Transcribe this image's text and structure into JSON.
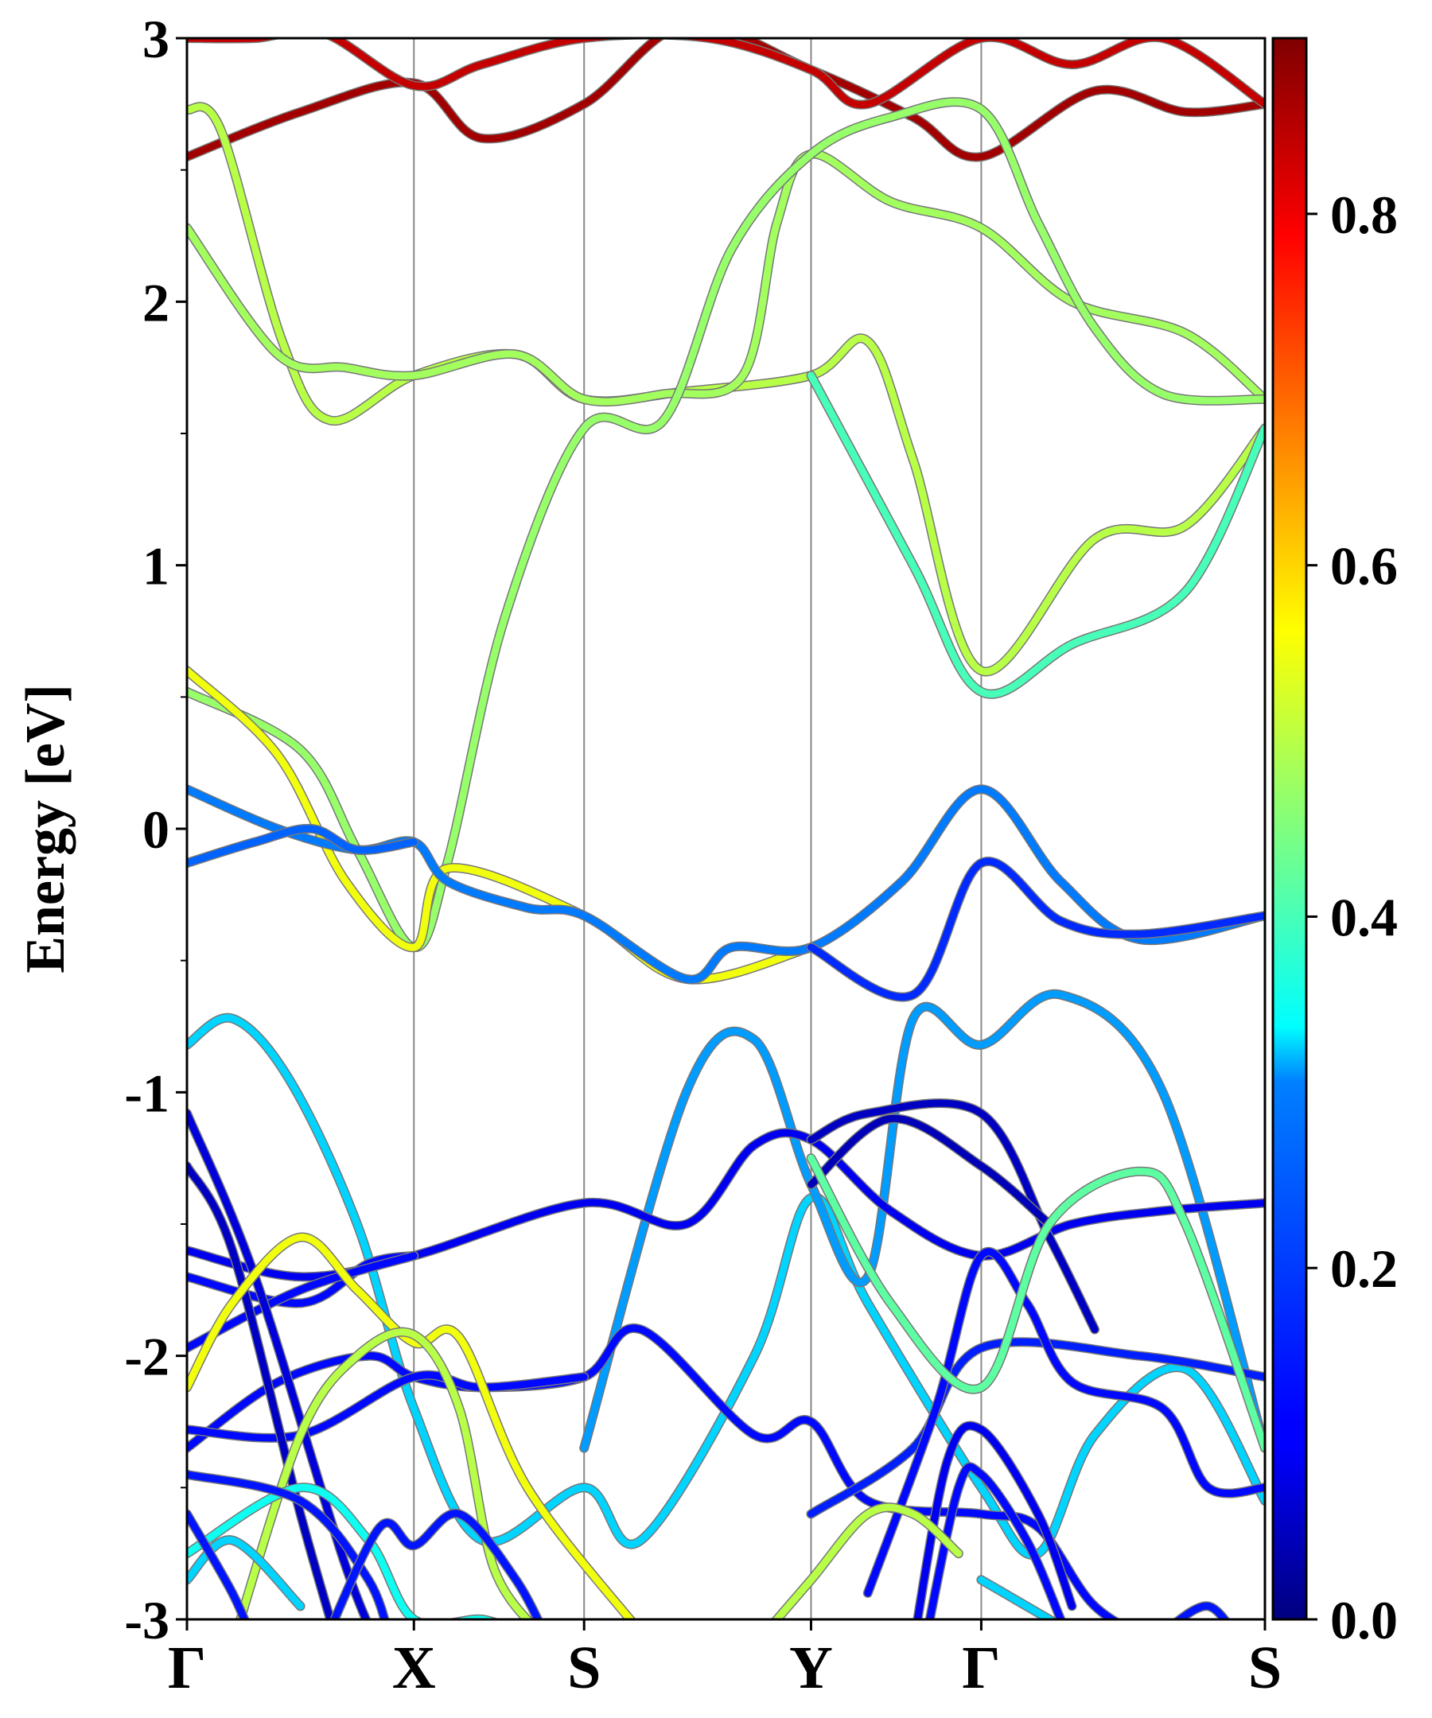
{
  "chart_data": {
    "type": "line",
    "title": "",
    "xlabel": "",
    "ylabel": "Energy [eV]",
    "ylim": [
      -3,
      3
    ],
    "y_ticks": [
      "-3",
      "-2",
      "-1",
      "0",
      "1",
      "2",
      "3"
    ],
    "grid": false,
    "legend": "none",
    "k_path": {
      "labels": [
        "Γ",
        "X",
        "S",
        "Y",
        "Γ",
        "S"
      ],
      "positions": [
        0,
        1,
        1.75,
        2.75,
        3.5,
        4.75
      ]
    },
    "colorbar": {
      "range": [
        0,
        0.9
      ],
      "ticks": [
        "0.0",
        "0.2",
        "0.4",
        "0.6",
        "0.8"
      ],
      "colormap": "jet"
    },
    "series": [
      {
        "weight": 0.87,
        "values": [
          [
            0,
            2.55
          ],
          [
            0.5,
            2.72
          ],
          [
            1,
            2.83
          ],
          [
            1.3,
            2.62
          ],
          [
            1.75,
            2.75
          ],
          [
            2.2,
            3.05
          ],
          [
            2.75,
            2.88
          ],
          [
            3.2,
            2.7
          ],
          [
            3.5,
            2.55
          ],
          [
            4.0,
            2.8
          ],
          [
            4.4,
            2.72
          ],
          [
            4.75,
            2.75
          ]
        ]
      },
      {
        "weight": 0.84,
        "values": [
          [
            0,
            3.0
          ],
          [
            0.3,
            3.0
          ],
          [
            0.6,
            3.02
          ],
          [
            1,
            2.82
          ],
          [
            1.3,
            2.9
          ],
          [
            1.75,
            3.0
          ],
          [
            2.3,
            3.0
          ],
          [
            2.75,
            2.88
          ],
          [
            3.0,
            2.75
          ],
          [
            3.5,
            3.0
          ],
          [
            3.9,
            2.9
          ],
          [
            4.3,
            3.0
          ],
          [
            4.75,
            2.75
          ]
        ]
      },
      {
        "weight": 0.5,
        "values": [
          [
            0,
            2.73
          ],
          [
            0.15,
            2.65
          ],
          [
            0.42,
            1.85
          ],
          [
            0.63,
            1.55
          ],
          [
            1,
            1.72
          ],
          [
            1.45,
            1.8
          ],
          [
            1.75,
            1.63
          ],
          [
            2.2,
            1.66
          ],
          [
            2.75,
            1.72
          ],
          [
            3.0,
            1.85
          ],
          [
            3.2,
            1.4
          ],
          [
            3.5,
            0.6
          ],
          [
            4.0,
            1.1
          ],
          [
            4.4,
            1.15
          ],
          [
            4.75,
            1.52
          ]
        ]
      },
      {
        "weight": 0.48,
        "values": [
          [
            0,
            2.28
          ],
          [
            0.4,
            1.8
          ],
          [
            0.7,
            1.75
          ],
          [
            1,
            1.72
          ],
          [
            1.45,
            1.8
          ],
          [
            1.75,
            1.63
          ],
          [
            2.1,
            1.65
          ],
          [
            2.45,
            1.72
          ],
          [
            2.6,
            2.3
          ],
          [
            2.75,
            2.56
          ],
          [
            3.1,
            2.38
          ],
          [
            3.5,
            2.28
          ],
          [
            3.9,
            2.0
          ],
          [
            4.4,
            1.88
          ],
          [
            4.75,
            1.63
          ]
        ]
      },
      {
        "weight": 0.47,
        "values": [
          [
            0,
            0.52
          ],
          [
            0.5,
            0.3
          ],
          [
            0.75,
            -0.08
          ],
          [
            1,
            -0.45
          ],
          [
            1.15,
            -0.12
          ],
          [
            1.4,
            0.8
          ],
          [
            1.75,
            1.52
          ],
          [
            2.1,
            1.55
          ],
          [
            2.4,
            2.2
          ],
          [
            2.75,
            2.56
          ],
          [
            3.1,
            2.7
          ],
          [
            3.5,
            2.73
          ],
          [
            3.75,
            2.3
          ],
          [
            4.0,
            1.9
          ],
          [
            4.3,
            1.65
          ],
          [
            4.75,
            1.63
          ]
        ]
      },
      {
        "weight": 0.55,
        "values": [
          [
            0,
            0.6
          ],
          [
            0.4,
            0.28
          ],
          [
            0.7,
            -0.2
          ],
          [
            1,
            -0.45
          ],
          [
            1.15,
            -0.15
          ],
          [
            1.75,
            -0.33
          ],
          [
            2.2,
            -0.57
          ],
          [
            2.75,
            -0.45
          ]
        ]
      },
      {
        "weight": 0.4,
        "values": [
          [
            2.75,
            1.72
          ],
          [
            3.2,
            1.0
          ],
          [
            3.5,
            0.52
          ],
          [
            3.9,
            0.7
          ],
          [
            4.4,
            0.9
          ],
          [
            4.75,
            1.52
          ]
        ]
      },
      {
        "weight": 0.22,
        "values": [
          [
            0,
            0.15
          ],
          [
            0.4,
            0.0
          ],
          [
            0.75,
            -0.08
          ],
          [
            1,
            -0.05
          ],
          [
            1.15,
            -0.2
          ],
          [
            1.5,
            -0.3
          ],
          [
            1.75,
            -0.33
          ],
          [
            2.2,
            -0.57
          ],
          [
            2.4,
            -0.45
          ],
          [
            2.75,
            -0.45
          ],
          [
            3.15,
            -0.2
          ],
          [
            3.5,
            0.15
          ],
          [
            3.85,
            -0.2
          ],
          [
            4.2,
            -0.42
          ],
          [
            4.75,
            -0.33
          ]
        ]
      },
      {
        "weight": 0.2,
        "values": [
          [
            0,
            -0.13
          ],
          [
            0.3,
            -0.05
          ],
          [
            0.55,
            0.0
          ],
          [
            0.75,
            -0.08
          ],
          [
            1,
            -0.05
          ]
        ]
      },
      {
        "weight": 0.15,
        "values": [
          [
            2.75,
            -0.45
          ],
          [
            3.2,
            -0.63
          ],
          [
            3.5,
            -0.13
          ],
          [
            3.85,
            -0.35
          ],
          [
            4.2,
            -0.4
          ],
          [
            4.75,
            -0.33
          ]
        ]
      },
      {
        "weight": 0.3,
        "values": [
          [
            0,
            -0.82
          ],
          [
            0.2,
            -0.72
          ],
          [
            0.45,
            -0.95
          ],
          [
            0.75,
            -1.5
          ],
          [
            1,
            -2.2
          ],
          [
            1.3,
            -2.7
          ],
          [
            1.75,
            -2.5
          ],
          [
            2.0,
            -2.7
          ],
          [
            2.5,
            -2.0
          ],
          [
            2.75,
            -1.4
          ],
          [
            3.0,
            -1.8
          ],
          [
            3.5,
            -2.5
          ],
          [
            3.75,
            -2.75
          ],
          [
            4.0,
            -2.3
          ],
          [
            4.4,
            -2.05
          ],
          [
            4.75,
            -2.55
          ]
        ]
      },
      {
        "weight": 0.25,
        "values": [
          [
            1.75,
            -2.35
          ],
          [
            2.2,
            -1.0
          ],
          [
            2.5,
            -0.8
          ],
          [
            2.75,
            -1.35
          ],
          [
            3.0,
            -1.7
          ],
          [
            3.2,
            -0.72
          ],
          [
            3.5,
            -0.82
          ],
          [
            3.85,
            -0.63
          ],
          [
            4.3,
            -1.0
          ],
          [
            4.75,
            -2.35
          ]
        ]
      },
      {
        "weight": 0.1,
        "values": [
          [
            0,
            -1.6
          ],
          [
            0.5,
            -1.7
          ],
          [
            1,
            -1.62
          ],
          [
            1.75,
            -1.42
          ],
          [
            2.2,
            -1.5
          ],
          [
            2.5,
            -1.2
          ],
          [
            2.75,
            -1.18
          ],
          [
            3.1,
            -1.45
          ],
          [
            3.5,
            -1.62
          ],
          [
            3.9,
            -1.5
          ],
          [
            4.3,
            -1.45
          ],
          [
            4.75,
            -1.42
          ]
        ]
      },
      {
        "weight": 0.12,
        "values": [
          [
            0,
            -1.7
          ],
          [
            0.5,
            -1.8
          ],
          [
            0.8,
            -1.65
          ],
          [
            1,
            -1.62
          ]
        ]
      },
      {
        "weight": 0.12,
        "values": [
          [
            0,
            -1.97
          ],
          [
            0.5,
            -1.75
          ],
          [
            1,
            -1.62
          ]
        ]
      },
      {
        "weight": 0.12,
        "values": [
          [
            0,
            -2.35
          ],
          [
            0.4,
            -2.1
          ],
          [
            0.8,
            -2.0
          ],
          [
            1,
            -2.08
          ],
          [
            1.3,
            -2.12
          ],
          [
            1.75,
            -2.08
          ],
          [
            2.0,
            -1.9
          ],
          [
            2.5,
            -2.3
          ],
          [
            2.75,
            -2.25
          ],
          [
            3.0,
            -2.55
          ],
          [
            3.5,
            -2.6
          ],
          [
            3.75,
            -2.65
          ],
          [
            4.0,
            -2.95
          ],
          [
            4.3,
            -3.1
          ]
        ]
      },
      {
        "weight": 0.12,
        "values": [
          [
            0,
            -2.28
          ],
          [
            0.5,
            -2.3
          ],
          [
            1,
            -2.08
          ],
          [
            1.3,
            -2.12
          ],
          [
            1.75,
            -2.08
          ]
        ]
      },
      {
        "weight": 0.08,
        "values": [
          [
            0,
            -1.08
          ],
          [
            0.3,
            -1.7
          ],
          [
            0.7,
            -2.8
          ],
          [
            0.9,
            -3.2
          ]
        ]
      },
      {
        "weight": 0.06,
        "values": [
          [
            0,
            -1.28
          ],
          [
            0.2,
            -1.6
          ],
          [
            0.5,
            -2.6
          ],
          [
            0.7,
            -3.2
          ]
        ]
      },
      {
        "weight": 0.06,
        "values": [
          [
            2.75,
            -1.18
          ],
          [
            3.0,
            -1.08
          ],
          [
            3.5,
            -1.08
          ],
          [
            3.8,
            -1.55
          ],
          [
            4.0,
            -1.9
          ]
        ]
      },
      {
        "weight": 0.05,
        "values": [
          [
            2.75,
            -1.35
          ],
          [
            3.1,
            -1.1
          ],
          [
            3.5,
            -1.28
          ],
          [
            3.8,
            -1.5
          ]
        ]
      },
      {
        "weight": 0.14,
        "values": [
          [
            2.75,
            -2.6
          ],
          [
            3.2,
            -2.35
          ],
          [
            3.5,
            -1.97
          ],
          [
            4.2,
            -2.0
          ],
          [
            4.75,
            -2.08
          ]
        ]
      },
      {
        "weight": 0.12,
        "values": [
          [
            3.0,
            -2.9
          ],
          [
            3.3,
            -2.2
          ],
          [
            3.5,
            -1.62
          ],
          [
            3.7,
            -1.8
          ],
          [
            3.9,
            -2.1
          ],
          [
            4.3,
            -2.2
          ],
          [
            4.5,
            -2.5
          ],
          [
            4.75,
            -2.5
          ]
        ]
      },
      {
        "weight": 0.1,
        "values": [
          [
            3.2,
            -3.1
          ],
          [
            3.35,
            -2.4
          ],
          [
            3.5,
            -2.28
          ],
          [
            3.75,
            -2.6
          ],
          [
            3.9,
            -2.95
          ]
        ]
      },
      {
        "weight": 0.12,
        "values": [
          [
            3.25,
            -3.1
          ],
          [
            3.4,
            -2.5
          ],
          [
            3.5,
            -2.45
          ],
          [
            3.7,
            -2.7
          ],
          [
            3.85,
            -3.0
          ]
        ]
      },
      {
        "weight": 0.55,
        "values": [
          [
            0,
            -2.12
          ],
          [
            0.2,
            -1.8
          ],
          [
            0.5,
            -1.55
          ],
          [
            0.75,
            -1.75
          ],
          [
            1,
            -1.95
          ],
          [
            1.2,
            -1.93
          ],
          [
            1.5,
            -2.5
          ],
          [
            2.0,
            -3.05
          ]
        ]
      },
      {
        "weight": 0.5,
        "values": [
          [
            0.2,
            -3.1
          ],
          [
            0.5,
            -2.3
          ],
          [
            0.75,
            -2.0
          ],
          [
            1,
            -1.92
          ],
          [
            1.2,
            -2.2
          ],
          [
            1.35,
            -2.8
          ],
          [
            1.55,
            -3.05
          ]
        ]
      },
      {
        "weight": 0.5,
        "values": [
          [
            2.5,
            -3.1
          ],
          [
            2.75,
            -2.85
          ],
          [
            3.0,
            -2.6
          ],
          [
            3.2,
            -2.6
          ],
          [
            3.4,
            -2.75
          ]
        ]
      },
      {
        "weight": 0.42,
        "values": [
          [
            2.75,
            -1.25
          ],
          [
            3.1,
            -1.8
          ],
          [
            3.5,
            -2.12
          ],
          [
            3.8,
            -1.5
          ],
          [
            4.2,
            -1.3
          ],
          [
            4.4,
            -1.5
          ],
          [
            4.75,
            -2.35
          ]
        ]
      },
      {
        "weight": 0.35,
        "values": [
          [
            0,
            -2.75
          ],
          [
            0.5,
            -2.5
          ],
          [
            0.8,
            -2.7
          ],
          [
            1,
            -3.0
          ],
          [
            1.3,
            -3.0
          ],
          [
            1.45,
            -3.05
          ]
        ]
      },
      {
        "weight": 0.3,
        "values": [
          [
            0,
            -2.85
          ],
          [
            0.2,
            -2.7
          ],
          [
            0.5,
            -2.95
          ]
        ]
      },
      {
        "weight": 0.3,
        "values": [
          [
            3.5,
            -2.85
          ],
          [
            3.9,
            -3.05
          ]
        ]
      },
      {
        "weight": 0.13,
        "values": [
          [
            0,
            -2.45
          ],
          [
            0.5,
            -2.55
          ],
          [
            0.8,
            -2.85
          ],
          [
            0.9,
            -3.1
          ]
        ]
      },
      {
        "weight": 0.13,
        "values": [
          [
            0.6,
            -3.1
          ],
          [
            0.85,
            -2.65
          ],
          [
            1,
            -2.72
          ],
          [
            1.2,
            -2.6
          ],
          [
            1.45,
            -2.85
          ],
          [
            1.6,
            -3.1
          ]
        ]
      },
      {
        "weight": 0.13,
        "values": [
          [
            0,
            -2.6
          ],
          [
            0.2,
            -2.9
          ],
          [
            0.3,
            -3.1
          ]
        ]
      },
      {
        "weight": 0.13,
        "values": [
          [
            4.3,
            -3.05
          ],
          [
            4.5,
            -2.95
          ],
          [
            4.65,
            -3.1
          ]
        ]
      }
    ]
  }
}
